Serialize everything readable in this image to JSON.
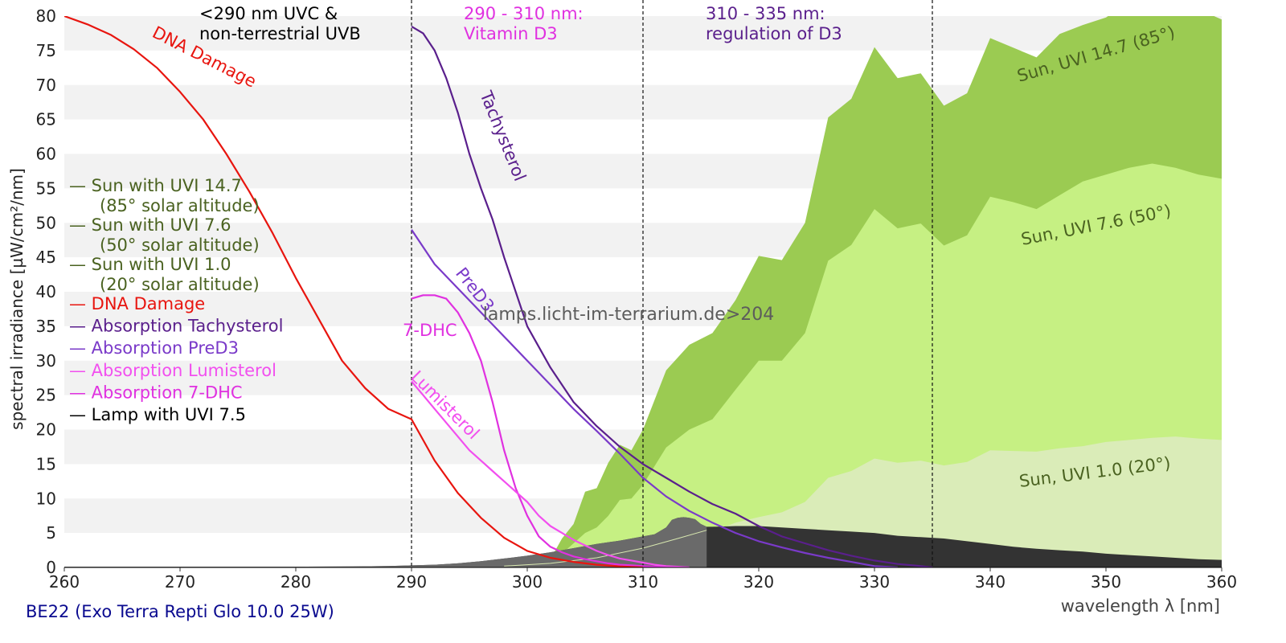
{
  "chart_data": {
    "type": "area",
    "title": "",
    "xlabel": "wavelength λ [nm]",
    "ylabel": "spectral irradiance [µW/cm²/nm]",
    "xlim": [
      260,
      360
    ],
    "ylim": [
      0,
      80
    ],
    "x_ticks": [
      260,
      270,
      280,
      290,
      300,
      310,
      320,
      330,
      340,
      350,
      360
    ],
    "y_ticks": [
      0,
      5,
      10,
      15,
      20,
      25,
      30,
      35,
      40,
      45,
      50,
      55,
      60,
      65,
      70,
      75,
      80
    ],
    "grid": "horizontal alternating bands",
    "footer": "BE22 (Exo Terra Repti Glo 10.0 25W)",
    "watermark": "lamps.licht-im-terrarium.de>204",
    "regions": [
      {
        "x": 290,
        "label": [
          "<290 nm UVC &",
          "non-terrestrial UVB"
        ],
        "color": "#000000"
      },
      {
        "x": 310,
        "label": [
          "290 - 310 nm:",
          "Vitamin D3"
        ],
        "color": "#e031e0"
      },
      {
        "x": 335,
        "label": [
          "310 - 335 nm:",
          "regulation of D3"
        ],
        "color": "#5a1f8c"
      }
    ],
    "series": [
      {
        "name": "Sun with UVI 14.7",
        "sub": "(85° solar altitude)",
        "kind": "area",
        "color": "#9bcb52",
        "label": "Sun, UVI 14.7 (85°)",
        "legend_color": "#4a6220",
        "x": [
          300,
          302,
          303,
          304,
          305,
          306,
          307,
          308,
          309,
          310,
          312,
          314,
          316,
          318,
          320,
          322,
          324,
          326,
          328,
          330,
          332,
          334,
          336,
          338,
          340,
          342,
          344,
          346,
          348,
          350,
          352,
          354,
          356,
          358,
          360
        ],
        "y": [
          0.3,
          1.2,
          4.2,
          6.3,
          11.0,
          11.5,
          15.2,
          17.8,
          17.0,
          20.0,
          28.6,
          32.3,
          34.0,
          38.8,
          45.2,
          44.6,
          50.0,
          65.3,
          68.0,
          75.5,
          71.0,
          71.7,
          67.0,
          68.8,
          76.8,
          75.4,
          74.0,
          77.4,
          78.7,
          79.8,
          82.0,
          83.0,
          82.0,
          81.0,
          79.5
        ]
      },
      {
        "name": "Sun with UVI 7.6",
        "sub": "(50° solar altitude)",
        "kind": "area",
        "color": "#c6f083",
        "label": "Sun, UVI 7.6 (50°)",
        "legend_color": "#4a6220",
        "x": [
          301,
          302,
          303,
          304,
          305,
          306,
          307,
          308,
          309,
          310,
          312,
          314,
          316,
          318,
          320,
          322,
          324,
          326,
          328,
          330,
          332,
          334,
          336,
          338,
          340,
          342,
          344,
          346,
          348,
          350,
          352,
          354,
          356,
          358,
          360
        ],
        "y": [
          0.2,
          0.8,
          2.0,
          3.5,
          5.0,
          5.8,
          7.5,
          9.8,
          10.0,
          12.0,
          17.4,
          20.0,
          21.5,
          25.8,
          30.0,
          30.0,
          34.0,
          44.5,
          46.8,
          52.0,
          49.2,
          49.9,
          46.7,
          48.2,
          53.8,
          53.0,
          52.0,
          54.0,
          56.0,
          57.0,
          58.0,
          58.6,
          58.0,
          57.0,
          56.4
        ]
      },
      {
        "name": "Sun with UVI 1.0",
        "sub": "(20° solar altitude)",
        "kind": "area",
        "color": "#daecb8",
        "label": "Sun, UVI 1.0 (20°)",
        "legend_color": "#4a6220",
        "x": [
          304,
          306,
          308,
          310,
          312,
          314,
          316,
          318,
          320,
          322,
          324,
          326,
          328,
          330,
          332,
          334,
          336,
          338,
          340,
          342,
          344,
          346,
          348,
          350,
          352,
          354,
          356,
          358,
          360
        ],
        "y": [
          0.1,
          0.5,
          1.2,
          2.0,
          3.2,
          4.5,
          5.2,
          6.5,
          7.3,
          8.0,
          9.5,
          13.0,
          14.0,
          15.8,
          15.2,
          15.5,
          14.8,
          15.3,
          17.0,
          16.9,
          16.8,
          17.3,
          17.6,
          18.2,
          18.5,
          18.8,
          19.0,
          18.7,
          18.5
        ]
      },
      {
        "name": "Lamp with UVI 7.5",
        "kind": "area",
        "color": "#333333",
        "overlay": "#6e6e6e",
        "overlay_to": 315.5,
        "x": [
          260,
          280,
          285,
          288,
          290,
          292,
          294,
          296,
          298,
          300,
          302,
          304,
          306,
          308,
          310,
          311,
          312,
          312.5,
          313,
          313.5,
          314,
          314.5,
          315,
          315.5,
          316,
          318,
          320,
          322,
          324,
          326,
          328,
          330,
          332,
          334,
          336,
          338,
          340,
          342,
          344,
          346,
          348,
          350,
          352,
          354,
          356,
          358,
          360
        ],
        "y": [
          0.1,
          0.1,
          0.15,
          0.2,
          0.3,
          0.4,
          0.6,
          0.9,
          1.3,
          1.7,
          2.2,
          2.8,
          3.4,
          3.9,
          4.5,
          4.8,
          5.8,
          6.9,
          7.2,
          7.3,
          7.2,
          7.0,
          6.3,
          5.9,
          5.9,
          6.0,
          6.0,
          5.8,
          5.6,
          5.4,
          5.2,
          5.0,
          4.6,
          4.4,
          4.2,
          3.8,
          3.4,
          3.0,
          2.7,
          2.5,
          2.3,
          2.0,
          1.8,
          1.6,
          1.4,
          1.2,
          1.1
        ]
      },
      {
        "name": "Absorption 7-DHC",
        "kind": "line",
        "color": "#e031e0",
        "label": "7-DHC",
        "x": [
          290,
          291,
          292,
          293,
          294,
          295,
          296,
          297,
          298,
          299,
          300,
          301,
          302,
          303,
          304,
          305,
          306,
          307,
          308,
          309,
          310,
          311,
          312,
          313,
          314
        ],
        "y": [
          39,
          39.5,
          39.5,
          39,
          37,
          34,
          30,
          24,
          17,
          11.5,
          7.5,
          4.5,
          3.0,
          2.2,
          1.6,
          1.2,
          0.9,
          0.6,
          0.4,
          0.3,
          0.2,
          0.1,
          0.1,
          0.05,
          0.0
        ]
      },
      {
        "name": "Absorption Lumisterol",
        "kind": "line",
        "color": "#f24fef",
        "label": "Lumisterol",
        "x": [
          290,
          291,
          292,
          293,
          294,
          295,
          296,
          297,
          298,
          299,
          300,
          301,
          302,
          303,
          304,
          305,
          306,
          307,
          308,
          309,
          310,
          311,
          312,
          313,
          314
        ],
        "y": [
          27,
          25,
          23,
          21,
          19,
          17,
          15.5,
          14,
          12.5,
          11,
          9.5,
          7.5,
          6.0,
          5.0,
          4.0,
          3.2,
          2.4,
          1.8,
          1.3,
          1.0,
          0.7,
          0.4,
          0.2,
          0.1,
          0.0
        ]
      },
      {
        "name": "Absorption PreD3",
        "kind": "line",
        "color": "#7a3ac9",
        "label": "PreD3",
        "x": [
          290,
          292,
          294,
          296,
          298,
          300,
          302,
          304,
          306,
          308,
          310,
          312,
          314,
          316,
          318,
          320,
          322,
          324,
          326,
          328,
          330,
          332
        ],
        "y": [
          49,
          44,
          40.5,
          37,
          33.5,
          30,
          26.5,
          23,
          19.8,
          16.5,
          13,
          10.3,
          8.2,
          6.5,
          5.0,
          3.8,
          2.9,
          2.1,
          1.4,
          0.8,
          0.2,
          0.0
        ]
      },
      {
        "name": "Absorption Tachysterol",
        "kind": "line",
        "color": "#5a1f8c",
        "label": "Tachysterol",
        "x": [
          290,
          291,
          292,
          293,
          294,
          295,
          296,
          297,
          298,
          299,
          300,
          302,
          304,
          306,
          308,
          310,
          312,
          314,
          316,
          318,
          320,
          322,
          324,
          326,
          328,
          330,
          332,
          334,
          335
        ],
        "y": [
          78.5,
          77.5,
          75,
          71,
          66,
          60,
          55,
          50.5,
          45,
          40,
          35,
          29,
          24,
          20.5,
          17.5,
          15.0,
          13.0,
          11.0,
          9.2,
          7.8,
          6.0,
          4.5,
          3.5,
          2.5,
          1.7,
          1.0,
          0.5,
          0.2,
          0.0
        ]
      },
      {
        "name": "DNA Damage",
        "kind": "line",
        "color": "#e8150f",
        "label": "DNA Damage",
        "x": [
          260,
          262,
          264,
          266,
          268,
          270,
          272,
          274,
          276,
          278,
          280,
          282,
          284,
          286,
          288,
          290,
          292,
          294,
          296,
          298,
          300,
          302,
          304,
          306,
          308,
          310
        ],
        "y": [
          80,
          78.8,
          77.3,
          75.2,
          72.5,
          69,
          65,
          60,
          54.5,
          48.5,
          42,
          36,
          30,
          26,
          23,
          21.5,
          15.5,
          10.8,
          7.2,
          4.3,
          2.4,
          1.4,
          0.8,
          0.4,
          0.15,
          0.0
        ]
      }
    ],
    "legend": [
      {
        "text": "— Sun with UVI 14.7",
        "sub": "(85° solar altitude)",
        "color": "#4a6220"
      },
      {
        "text": "— Sun with UVI 7.6",
        "sub": "(50° solar altitude)",
        "color": "#4a6220"
      },
      {
        "text": "— Sun with UVI 1.0",
        "sub": "(20° solar altitude)",
        "color": "#4a6220"
      },
      {
        "text": "— DNA Damage",
        "color": "#e8150f"
      },
      {
        "text": "— Absorption Tachysterol",
        "color": "#5a1f8c"
      },
      {
        "text": "— Absorption PreD3",
        "color": "#7a3ac9"
      },
      {
        "text": "— Absorption Lumisterol",
        "color": "#f24fef"
      },
      {
        "text": "— Absorption 7-DHC",
        "color": "#e031e0"
      },
      {
        "text": "— Lamp with UVI 7.5",
        "color": "#000000"
      }
    ]
  }
}
